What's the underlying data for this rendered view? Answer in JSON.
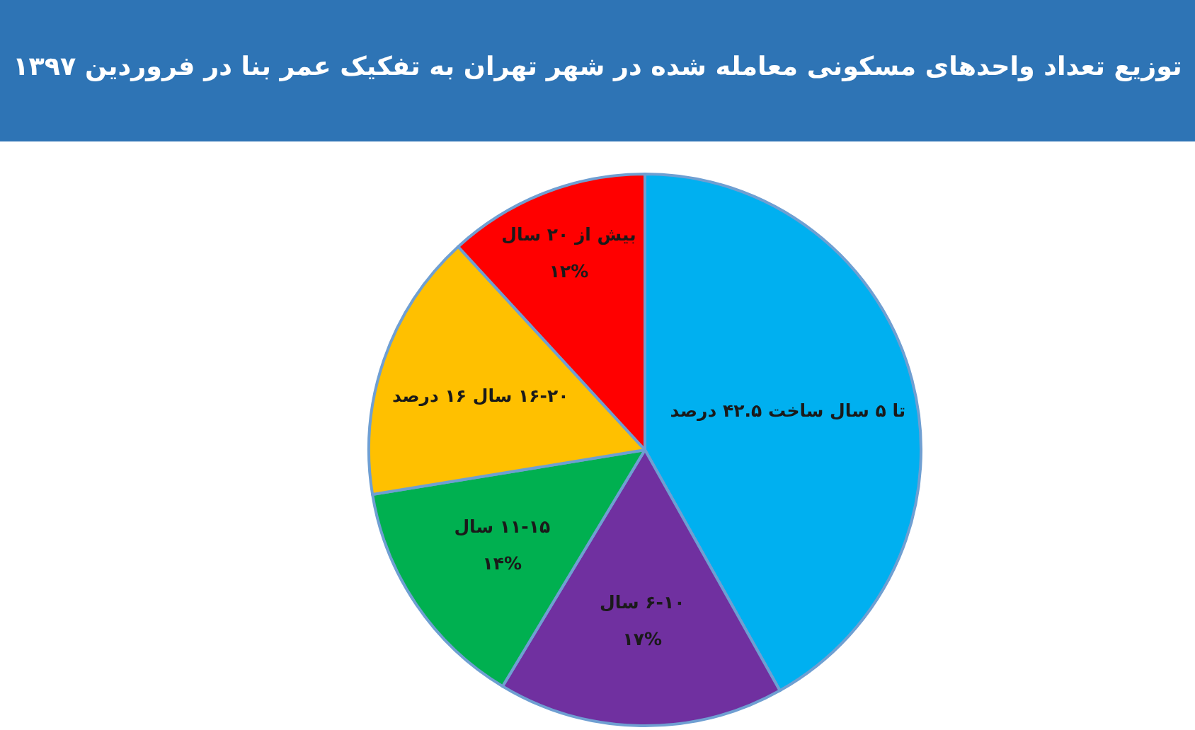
{
  "chart_data": {
    "type": "pie",
    "title": "توزیع تعداد واحدهای مسکونی معامله شده در شهر تهران به تفکیک عمر بنا در فروردین ۱۳۹۷",
    "categories": [
      "تا ۵ سال ساخت ۴۲.۵ درصد",
      "۶-۱۰ سال\n۱۷%",
      "۱۱-۱۵ سال\n۱۴%",
      "۱۶-۲۰ سال ۱۶ درصد",
      "بیش از ۲۰ سال\n۱۲%"
    ],
    "values": [
      42.5,
      17,
      14,
      16,
      12
    ],
    "colors": [
      "#00b0f0",
      "#7030a0",
      "#00b050",
      "#ffc000",
      "#ff0000"
    ]
  }
}
